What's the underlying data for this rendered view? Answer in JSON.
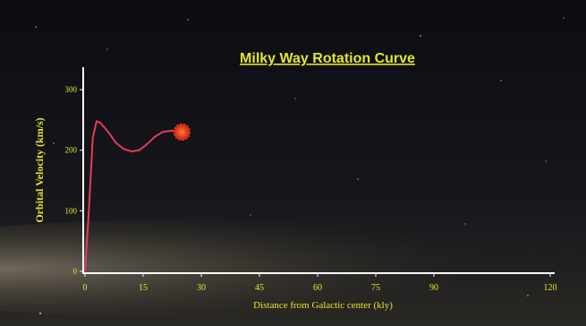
{
  "chart_data": {
    "type": "line",
    "title": "Milky Way Rotation Curve",
    "x_label": "Distance from Galactic center (kly)",
    "y_label": "Orbital Velocity (km/s)",
    "x": [
      0,
      1,
      2,
      3,
      4,
      6,
      8,
      10,
      12,
      14,
      16,
      18,
      20,
      22,
      24
    ],
    "series": [
      {
        "color": "#e83a5a",
        "values": [
          0,
          100,
          220,
          248,
          245,
          230,
          212,
          202,
          198,
          200,
          210,
          222,
          230,
          232,
          232
        ]
      }
    ],
    "marker": {
      "x": 25,
      "y": 230,
      "color": "#e8401c"
    },
    "xlim": [
      0,
      120
    ],
    "ylim": [
      0,
      340
    ],
    "xticks": [
      0,
      15,
      30,
      45,
      60,
      75,
      90,
      120
    ],
    "yticks": [
      0,
      100,
      200,
      300
    ],
    "axis_color": "#ffffff",
    "text_color": "#e6e62a"
  }
}
